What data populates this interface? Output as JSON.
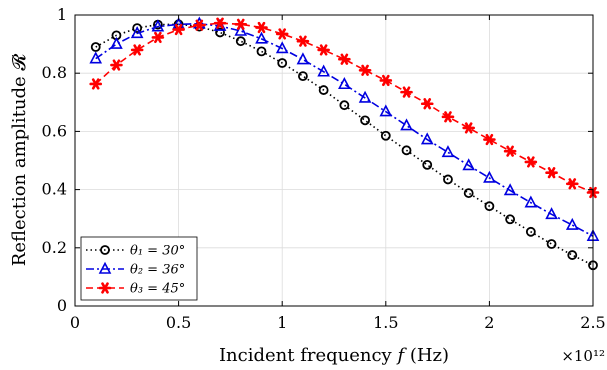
{
  "chart_data": {
    "type": "line",
    "xlabel": "Incident frequency 𝑓 (Hz)",
    "ylabel": "Reflection amplitude 𝓡",
    "x_exponent_label": "×10¹²",
    "xlim": [
      0,
      2.5
    ],
    "ylim": [
      0,
      1
    ],
    "grid": true,
    "legend_position": "bottom-left",
    "x_ticks": [
      "0",
      "0.5",
      "1",
      "1.5",
      "2",
      "2.5"
    ],
    "y_ticks": [
      "0",
      "0.2",
      "0.4",
      "0.6",
      "0.8",
      "1"
    ],
    "x_tick_values": [
      0,
      0.5,
      1,
      1.5,
      2,
      2.5
    ],
    "y_tick_values": [
      0,
      0.2,
      0.4,
      0.6,
      0.8,
      1
    ],
    "x": [
      0.1,
      0.2,
      0.3,
      0.4,
      0.5,
      0.6,
      0.7,
      0.8,
      0.9,
      1.0,
      1.1,
      1.2,
      1.3,
      1.4,
      1.5,
      1.6,
      1.7,
      1.8,
      1.9,
      2.0,
      2.1,
      2.2,
      2.3,
      2.4,
      2.5
    ],
    "series": [
      {
        "name": "θ₁ = 30°",
        "color": "#000000",
        "line_style": "dotted",
        "marker": "circle",
        "values": [
          0.89,
          0.93,
          0.955,
          0.967,
          0.968,
          0.96,
          0.94,
          0.91,
          0.875,
          0.835,
          0.79,
          0.742,
          0.69,
          0.638,
          0.585,
          0.535,
          0.485,
          0.435,
          0.388,
          0.343,
          0.298,
          0.255,
          0.213,
          0.175,
          0.14
        ]
      },
      {
        "name": "θ₂ = 36°",
        "color": "#0000e0",
        "line_style": "dashdot",
        "marker": "triangle",
        "values": [
          0.85,
          0.9,
          0.937,
          0.96,
          0.968,
          0.97,
          0.962,
          0.945,
          0.918,
          0.885,
          0.847,
          0.805,
          0.762,
          0.715,
          0.668,
          0.62,
          0.572,
          0.528,
          0.483,
          0.44,
          0.397,
          0.355,
          0.315,
          0.278,
          0.24
        ]
      },
      {
        "name": "θ₃ = 45°",
        "color": "#ff0000",
        "line_style": "dashed",
        "marker": "star",
        "values": [
          0.763,
          0.828,
          0.88,
          0.923,
          0.95,
          0.965,
          0.972,
          0.968,
          0.957,
          0.935,
          0.91,
          0.88,
          0.848,
          0.81,
          0.775,
          0.735,
          0.695,
          0.65,
          0.612,
          0.572,
          0.532,
          0.495,
          0.458,
          0.42,
          0.39
        ]
      }
    ]
  }
}
